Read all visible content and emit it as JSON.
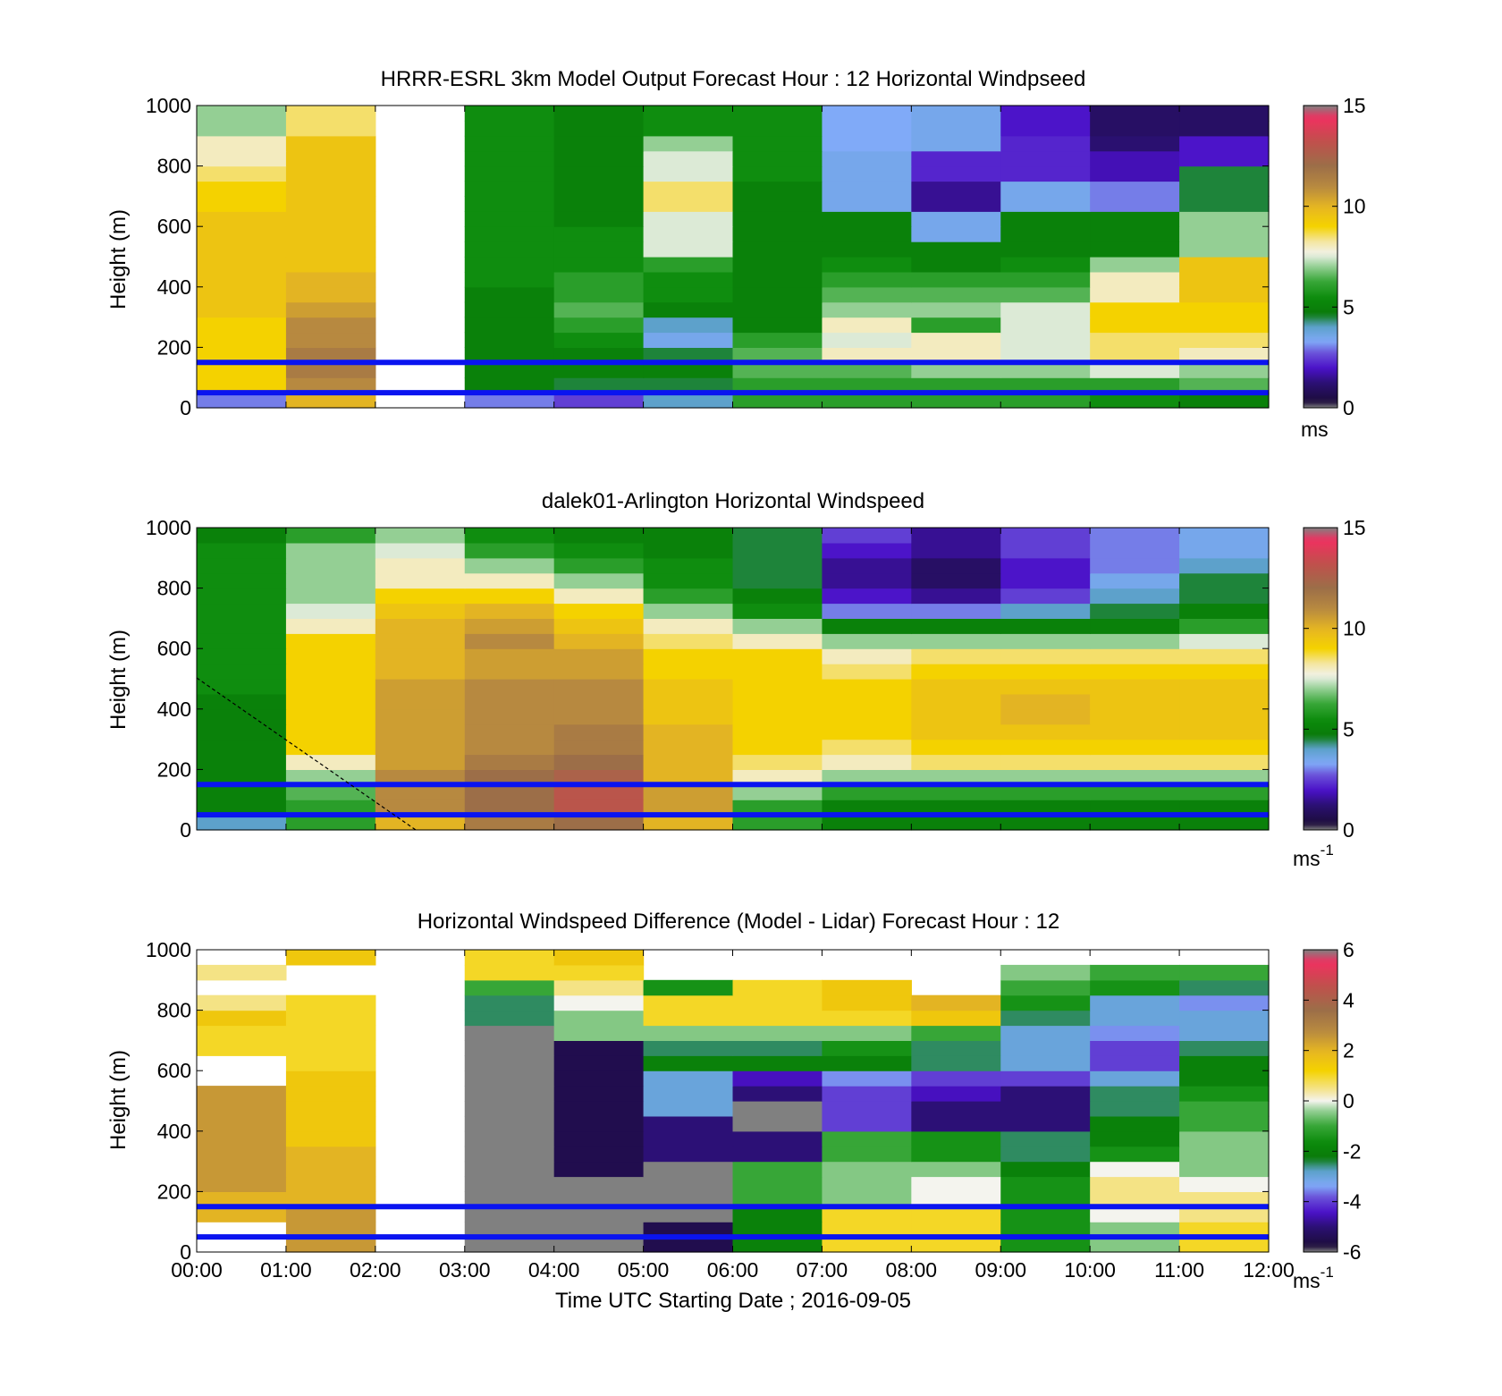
{
  "colors": {
    "marker_lines": "#0a14f0",
    "frame": "#000000",
    "missing": "#ffffff"
  },
  "shared": {
    "xlabel": "Time UTC  Starting Date ; 2016-09-05",
    "x_ticks": [
      "00:00",
      "01:00",
      "02:00",
      "03:00",
      "04:00",
      "05:00",
      "06:00",
      "07:00",
      "08:00",
      "09:00",
      "10:00",
      "11:00",
      "12:00"
    ]
  },
  "chart_data": [
    {
      "type": "heatmap",
      "title": "HRRR-ESRL 3km Model Output   Forecast Hour : 12 Horizontal Windpseed",
      "ylabel": "Height (m)",
      "y_ticks": [
        "0",
        "200",
        "400",
        "600",
        "800",
        "1000"
      ],
      "ylim": [
        0,
        1000
      ],
      "xlim_hours": [
        0,
        12
      ],
      "colorbar": {
        "ticks": [
          "0",
          "5",
          "10",
          "15"
        ],
        "range": [
          0,
          15
        ],
        "unit": "ms",
        "unit_sup": "",
        "palette": "windspeed"
      },
      "reference_heights_m": [
        50,
        150
      ],
      "x_hours": [
        0.5,
        1.5,
        2.5,
        3.5,
        4.5,
        5.5,
        6.5,
        7.5,
        8.5,
        9.5,
        10.5,
        11.5
      ],
      "y_heights_m": [
        25,
        75,
        125,
        175,
        225,
        275,
        325,
        375,
        425,
        475,
        525,
        575,
        625,
        675,
        725,
        775,
        825,
        875,
        925,
        975
      ],
      "values_ms": [
        [
          3,
          10,
          null,
          3,
          2.5,
          4,
          6,
          6,
          6,
          6,
          5.5,
          5
        ],
        [
          9,
          11,
          null,
          5,
          4.5,
          4.5,
          6,
          6,
          6,
          6,
          6,
          6.5
        ],
        [
          9,
          11.5,
          null,
          5,
          5,
          5,
          6.5,
          6.5,
          7,
          7,
          7.5,
          7
        ],
        [
          9,
          11.5,
          null,
          5,
          5,
          4.5,
          6.5,
          8,
          8,
          7.5,
          8.5,
          8
        ],
        [
          9,
          11,
          null,
          5,
          5.5,
          3.5,
          6,
          7.5,
          8,
          7.5,
          8.5,
          8.5
        ],
        [
          9,
          11,
          null,
          5,
          6,
          4,
          5,
          8,
          6,
          7.5,
          9,
          9
        ],
        [
          9.5,
          10.5,
          null,
          5,
          6.5,
          5,
          5,
          7,
          7,
          7.5,
          9,
          9
        ],
        [
          9.5,
          10,
          null,
          5,
          6,
          5.5,
          5,
          6.5,
          6.5,
          6.5,
          8,
          9.5
        ],
        [
          9.5,
          10,
          null,
          5.5,
          6,
          5.5,
          5,
          6,
          6,
          6,
          8,
          9.5
        ],
        [
          9.5,
          9.5,
          null,
          5.5,
          5.5,
          6,
          5,
          5.5,
          5,
          5.5,
          7,
          9.5
        ],
        [
          9.5,
          9.5,
          null,
          5.5,
          5.5,
          7.5,
          5,
          5,
          5,
          5,
          5,
          7
        ],
        [
          9.5,
          9.5,
          null,
          5.5,
          5.5,
          7.5,
          5,
          5,
          3.5,
          5,
          5,
          7
        ],
        [
          9.5,
          9.5,
          null,
          5.5,
          5,
          7.5,
          5,
          5,
          3.5,
          5,
          5,
          7
        ],
        [
          9,
          9.5,
          null,
          5.5,
          5,
          8.5,
          5,
          3.5,
          1.5,
          3.5,
          3,
          4.5
        ],
        [
          9,
          9.5,
          null,
          5.5,
          5,
          8.5,
          5,
          3.5,
          1.5,
          3.5,
          3,
          4.5
        ],
        [
          8.5,
          9.5,
          null,
          5.5,
          5,
          7.5,
          5.5,
          3.5,
          2.2,
          2.2,
          1.8,
          4.5
        ],
        [
          8,
          9.5,
          null,
          5.5,
          5,
          7.5,
          5.5,
          3.5,
          2.2,
          2.2,
          1.8,
          2
        ],
        [
          8,
          9.5,
          null,
          5.5,
          5,
          7,
          5.5,
          3.3,
          3.5,
          2.2,
          1.2,
          2
        ],
        [
          7,
          8.5,
          null,
          5.5,
          5,
          5.5,
          5.5,
          3.3,
          3.5,
          2,
          1,
          1
        ],
        [
          7,
          8.5,
          null,
          5.5,
          5,
          5.5,
          5.5,
          3.3,
          3.5,
          2,
          1,
          1
        ]
      ]
    },
    {
      "type": "heatmap",
      "title": "dalek01-Arlington  Horizontal Windspeed",
      "ylabel": "Height (m)",
      "y_ticks": [
        "0",
        "200",
        "400",
        "600",
        "800",
        "1000"
      ],
      "ylim": [
        0,
        1000
      ],
      "xlim_hours": [
        0,
        12
      ],
      "colorbar": {
        "ticks": [
          "0",
          "5",
          "10",
          "15"
        ],
        "range": [
          0,
          15
        ],
        "unit": "ms",
        "unit_sup": "-1",
        "palette": "windspeed"
      },
      "reference_heights_m": [
        50,
        150
      ],
      "x_hours": [
        0.5,
        1.5,
        2.5,
        3.5,
        4.5,
        5.5,
        6.5,
        7.5,
        8.5,
        9.5,
        10.5,
        11.5
      ],
      "y_heights_m": [
        25,
        75,
        125,
        175,
        225,
        275,
        325,
        375,
        425,
        475,
        525,
        575,
        625,
        675,
        725,
        775,
        825,
        875,
        925,
        975
      ],
      "values_ms": [
        [
          4,
          6,
          10,
          11.5,
          12,
          10,
          6,
          5,
          5,
          5,
          5,
          5
        ],
        [
          5,
          6,
          11,
          12,
          13,
          10.5,
          6,
          5,
          5,
          5,
          5,
          5
        ],
        [
          5,
          6.5,
          11,
          12,
          13,
          10.5,
          7,
          6,
          6,
          6,
          6,
          6
        ],
        [
          5,
          7,
          11,
          12,
          12.5,
          10,
          8,
          7,
          7,
          7,
          7,
          7
        ],
        [
          5,
          8,
          10.5,
          11.5,
          12,
          10,
          8.5,
          8,
          8.5,
          8.5,
          8.5,
          8.5
        ],
        [
          5,
          9,
          10.5,
          11,
          11.5,
          10,
          9,
          8.5,
          9,
          9,
          9,
          9
        ],
        [
          5,
          9,
          10.5,
          11,
          11.5,
          10,
          9,
          9,
          9.5,
          9.5,
          9.5,
          9.5
        ],
        [
          5,
          9,
          10.5,
          11,
          11,
          9.5,
          9,
          9,
          9.5,
          10,
          9.5,
          9.5
        ],
        [
          5,
          9,
          10.5,
          11,
          11,
          9.5,
          9,
          9,
          9.5,
          10,
          9.5,
          9.5
        ],
        [
          5.5,
          9,
          10.5,
          11,
          11,
          9.5,
          9,
          9,
          9.5,
          9.5,
          9.5,
          9.5
        ],
        [
          5.5,
          9,
          10,
          10.5,
          10.5,
          9,
          9,
          8.5,
          9,
          9,
          9,
          9
        ],
        [
          5.5,
          9,
          10,
          10.5,
          10.5,
          9,
          9,
          8,
          8.5,
          8.5,
          8.5,
          8.5
        ],
        [
          5.5,
          9,
          10,
          11,
          10,
          8.5,
          8,
          7,
          7,
          7,
          7,
          7.5
        ],
        [
          5.5,
          8,
          10,
          10.5,
          9.5,
          8,
          7,
          5,
          5,
          5,
          5,
          6
        ],
        [
          5.5,
          7.5,
          9.5,
          10,
          9,
          7,
          5.5,
          3,
          3,
          4,
          4.5,
          5
        ],
        [
          5.5,
          7,
          9,
          9,
          8,
          6,
          5,
          2,
          1.5,
          2.5,
          4,
          4.5
        ],
        [
          5.5,
          7,
          8,
          8,
          7,
          5.5,
          4.5,
          1.5,
          1,
          2,
          3.5,
          4.5
        ],
        [
          5.5,
          7,
          8,
          7,
          6,
          5.5,
          4.5,
          1.5,
          1,
          2,
          3,
          4
        ],
        [
          5.5,
          7,
          7.5,
          6,
          5.5,
          5,
          4.5,
          2,
          1.5,
          2.5,
          3,
          3.5
        ],
        [
          5,
          6,
          7,
          5.5,
          5,
          5,
          4.5,
          2.5,
          1.5,
          2.5,
          3,
          3.5
        ]
      ]
    },
    {
      "type": "heatmap",
      "title": "Horizontal Windspeed Difference (Model - Lidar) Forecast Hour : 12",
      "ylabel": "Height (m)",
      "y_ticks": [
        "0",
        "200",
        "400",
        "600",
        "800",
        "1000"
      ],
      "ylim": [
        0,
        1000
      ],
      "xlim_hours": [
        0,
        12
      ],
      "colorbar": {
        "ticks": [
          "-6",
          "-4",
          "-2",
          "0",
          "2",
          "4",
          "6"
        ],
        "range": [
          -6,
          6
        ],
        "unit": "ms",
        "unit_sup": "-1",
        "palette": "difference"
      },
      "reference_heights_m": [
        50,
        150
      ],
      "x_hours": [
        0.5,
        1.5,
        2.5,
        3.5,
        4.5,
        5.5,
        6.5,
        7.5,
        8.5,
        9.5,
        10.5,
        11.5
      ],
      "y_heights_m": [
        25,
        75,
        125,
        175,
        225,
        275,
        325,
        375,
        425,
        475,
        525,
        575,
        625,
        675,
        725,
        775,
        825,
        875,
        925,
        975
      ],
      "values_ms": [
        [
          null,
          2.5,
          null,
          -6.5,
          -6.5,
          -5.5,
          -2,
          1,
          1,
          -1.5,
          -0.5,
          1
        ],
        [
          null,
          2.5,
          null,
          -6.5,
          -6.5,
          -5.5,
          -2,
          1,
          1,
          -1.5,
          -0.5,
          1
        ],
        [
          2,
          2.5,
          null,
          -6.5,
          -6.5,
          -6.5,
          -2,
          1,
          1,
          -1.5,
          0,
          0.5
        ],
        [
          2,
          2,
          null,
          -6.5,
          -6.5,
          -6.5,
          -1,
          -0.5,
          0,
          -1.5,
          0.5,
          0.5
        ],
        [
          2.5,
          2,
          null,
          -6.5,
          -6.5,
          -6.5,
          -1,
          -0.5,
          0,
          -1.5,
          0.5,
          0
        ],
        [
          2.5,
          2,
          null,
          -6.5,
          -5.5,
          -6.5,
          -1,
          -0.5,
          -0.5,
          -2,
          0,
          -0.5
        ],
        [
          2.5,
          2,
          null,
          -6.5,
          -5.5,
          -5,
          -5,
          -1,
          -1.5,
          -2.5,
          -1.5,
          -0.5
        ],
        [
          2.5,
          1.5,
          null,
          -6.5,
          -5.5,
          -5,
          -5,
          -1,
          -1.5,
          -2.5,
          -2,
          -0.5
        ],
        [
          2.5,
          1.5,
          null,
          -6.5,
          -5.5,
          -5,
          -6.5,
          -4,
          -5,
          -5,
          -2,
          -1
        ],
        [
          2.5,
          1.5,
          null,
          -6.5,
          -5.5,
          -3,
          -6,
          -4,
          -5,
          -5,
          -2.5,
          -1
        ],
        [
          2.5,
          1.5,
          null,
          -6.5,
          -5.5,
          -3,
          -5,
          -4,
          -4.5,
          -5,
          -2.5,
          -1.5
        ],
        [
          null,
          1.5,
          null,
          -6.5,
          -5.5,
          -3,
          -4.5,
          -3.5,
          -4,
          -4,
          -3,
          -2
        ],
        [
          null,
          1,
          null,
          -6.5,
          -5.5,
          -2,
          -2,
          -2,
          -2.5,
          -3,
          -4,
          -2
        ],
        [
          1,
          1,
          null,
          -6.5,
          -5.5,
          -2.5,
          -2.5,
          -1.5,
          -2.5,
          -3,
          -4,
          -2.5
        ],
        [
          1,
          1,
          null,
          -6.5,
          -0.5,
          -0.5,
          -0.5,
          -0.5,
          -1,
          -3,
          -3.5,
          -3
        ],
        [
          1.5,
          1,
          null,
          -2.5,
          -0.5,
          1,
          1,
          1,
          1.5,
          -2.5,
          -3,
          -3
        ],
        [
          0.5,
          1,
          null,
          -2.5,
          0,
          1,
          1,
          1.5,
          2,
          -1.5,
          -3,
          -3.5
        ],
        [
          null,
          null,
          null,
          -1,
          0.5,
          -1.5,
          1,
          1.5,
          null,
          -1,
          -1.5,
          -2.5
        ],
        [
          0.5,
          null,
          null,
          1,
          1,
          null,
          null,
          null,
          null,
          -0.5,
          -1,
          -1
        ],
        [
          null,
          1.5,
          null,
          1,
          1.5,
          null,
          null,
          null,
          null,
          null,
          null,
          null
        ]
      ]
    }
  ]
}
